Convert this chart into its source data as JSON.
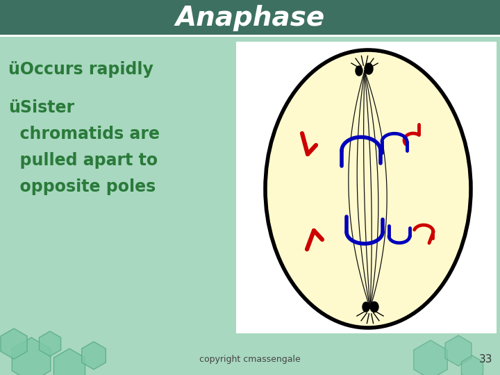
{
  "title": "Anaphase",
  "title_color": "#FFFFFF",
  "title_bg_top": "#3a6b55",
  "title_bg_bot": "#5aaa7a",
  "bullet1": "üOccurs rapidly",
  "bullet2_line1": "üSister",
  "bullet2_line2": "  chromatids are",
  "bullet2_line3": "  pulled apart to",
  "bullet2_line4": "  opposite poles",
  "bullet_color": "#2a7a3a",
  "bg_main": "#a8d8c0",
  "bg_right": "#FFFFFF",
  "footer_text": "copyright cmassengale",
  "footer_number": "33",
  "cell_fill": "#FFFACD",
  "cell_border": "#000000",
  "chromosome_red": "#CC0000",
  "chromosome_blue": "#0000BB",
  "spindle_color": "#111111",
  "title_fontsize": 28,
  "bullet_fontsize": 17
}
